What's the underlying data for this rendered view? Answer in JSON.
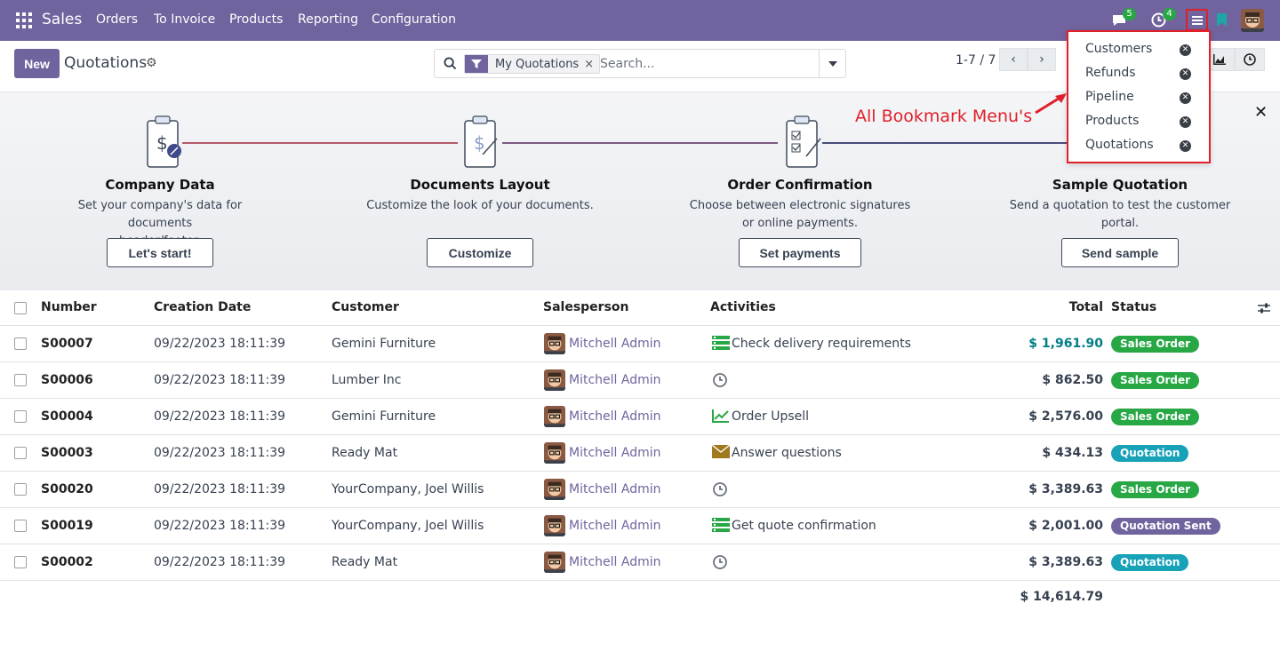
{
  "navbar": {
    "app_name": "Sales",
    "menu": [
      "Orders",
      "To Invoice",
      "Products",
      "Reporting",
      "Configuration"
    ],
    "messages_count": "5",
    "activities_count": "4",
    "colors": {
      "primary": "#71639e",
      "badge": "#28a745",
      "highlight": "#e0202a"
    }
  },
  "control": {
    "new_label": "New",
    "title": "Quotations",
    "facet": "My Quotations",
    "search_placeholder": "Search...",
    "pager": "1-7 / 7"
  },
  "onboarding": {
    "steps": [
      {
        "title": "Company Data",
        "desc1": "Set your company's data for documents",
        "desc2": "header/footer.",
        "button": "Let's start!"
      },
      {
        "title": "Documents Layout",
        "desc1": "Customize the look of your documents.",
        "desc2": "",
        "button": "Customize"
      },
      {
        "title": "Order Confirmation",
        "desc1": "Choose between electronic signatures",
        "desc2": "or online payments.",
        "button": "Set payments"
      },
      {
        "title": "Sample Quotation",
        "desc1": "Send a quotation to test the customer",
        "desc2": "portal.",
        "button": "Send sample"
      }
    ]
  },
  "table": {
    "headers": {
      "number": "Number",
      "date": "Creation Date",
      "customer": "Customer",
      "salesperson": "Salesperson",
      "activities": "Activities",
      "total": "Total",
      "status": "Status"
    },
    "rows": [
      {
        "number": "S00007",
        "date": "09/22/2023 18:11:39",
        "customer": "Gemini Furniture",
        "salesperson": "Mitchell Admin",
        "activity_icon": "todo-icon",
        "activity": "Check delivery requirements",
        "total": "$ 1,961.90",
        "status": "Sales Order"
      },
      {
        "number": "S00006",
        "date": "09/22/2023 18:11:39",
        "customer": "Lumber Inc",
        "salesperson": "Mitchell Admin",
        "activity_icon": "clock-icon",
        "activity": "",
        "total": "$ 862.50",
        "status": "Sales Order"
      },
      {
        "number": "S00004",
        "date": "09/22/2023 18:11:39",
        "customer": "Gemini Furniture",
        "salesperson": "Mitchell Admin",
        "activity_icon": "chart-icon",
        "activity": "Order Upsell",
        "total": "$ 2,576.00",
        "status": "Sales Order"
      },
      {
        "number": "S00003",
        "date": "09/22/2023 18:11:39",
        "customer": "Ready Mat",
        "salesperson": "Mitchell Admin",
        "activity_icon": "envelope-icon",
        "activity": "Answer questions",
        "total": "$ 434.13",
        "status": "Quotation"
      },
      {
        "number": "S00020",
        "date": "09/22/2023 18:11:39",
        "customer": "YourCompany, Joel Willis",
        "salesperson": "Mitchell Admin",
        "activity_icon": "clock-icon",
        "activity": "",
        "total": "$ 3,389.63",
        "status": "Sales Order"
      },
      {
        "number": "S00019",
        "date": "09/22/2023 18:11:39",
        "customer": "YourCompany, Joel Willis",
        "salesperson": "Mitchell Admin",
        "activity_icon": "todo-icon",
        "activity": "Get quote confirmation",
        "total": "$ 2,001.00",
        "status": "Quotation Sent"
      },
      {
        "number": "S00002",
        "date": "09/22/2023 18:11:39",
        "customer": "Ready Mat",
        "salesperson": "Mitchell Admin",
        "activity_icon": "clock-icon",
        "activity": "",
        "total": "$ 3,389.63",
        "status": "Quotation"
      }
    ],
    "grand_total": "$ 14,614.79",
    "status_colors": {
      "Sales Order": "#28a745",
      "Quotation": "#17a2b8",
      "Quotation Sent": "#71639e"
    }
  },
  "bookmarks": {
    "items": [
      "Customers",
      "Refunds",
      "Pipeline",
      "Products",
      "Quotations"
    ],
    "annotation": "All Bookmark Menu's"
  }
}
